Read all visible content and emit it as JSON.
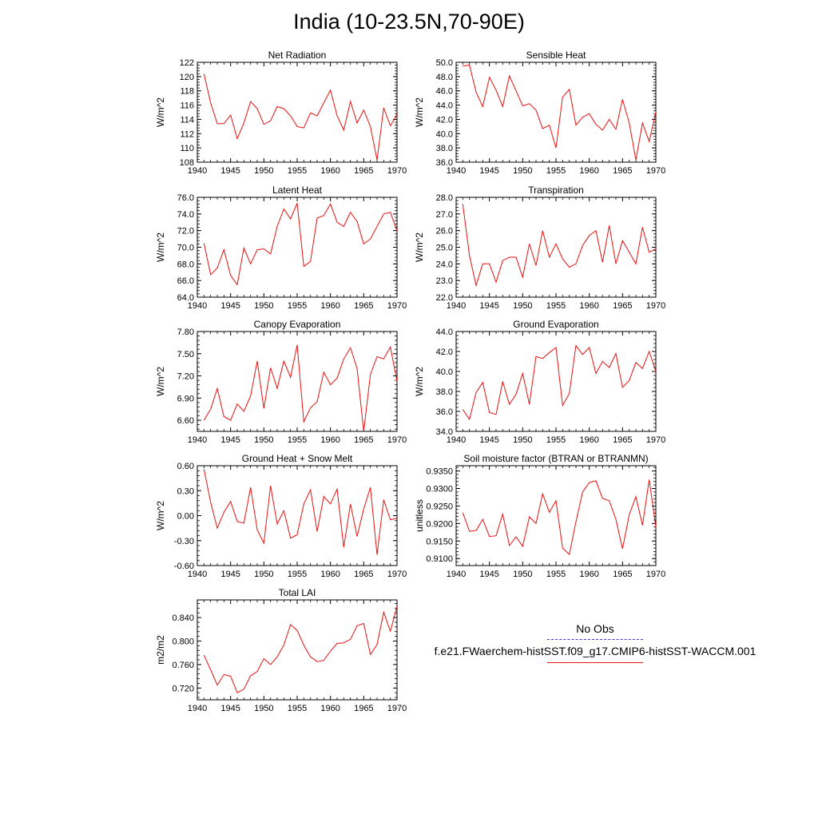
{
  "title": "India (10-23.5N,70-90E)",
  "legend": {
    "obs_label": "No Obs",
    "obs_color": "#3b3bd4",
    "run_label": "f.e21.FWaerchem-histSST.f09_g17.CMIP6-histSST-WACCM.001",
    "run_color": "#e8100f"
  },
  "chart_data": [
    {
      "type": "line",
      "title": "Net Radiation",
      "ylabel": "W/m^2",
      "xlim": [
        1940,
        1970
      ],
      "ylim": [
        108,
        122
      ],
      "xticks": [
        "1940",
        "1945",
        "1950",
        "1955",
        "1960",
        "1965",
        "1970"
      ],
      "yticks": [
        "108",
        "110",
        "112",
        "114",
        "116",
        "118",
        "120",
        "122"
      ],
      "grid": false,
      "x": [
        1941,
        1942,
        1943,
        1944,
        1945,
        1946,
        1947,
        1948,
        1949,
        1950,
        1951,
        1952,
        1953,
        1954,
        1955,
        1956,
        1957,
        1958,
        1959,
        1960,
        1961,
        1962,
        1963,
        1964,
        1965,
        1966,
        1967,
        1968,
        1969,
        1970
      ],
      "series": [
        {
          "values": [
            120.4,
            116.3,
            113.4,
            113.4,
            114.6,
            111.3,
            113.5,
            116.5,
            115.5,
            113.3,
            113.8,
            115.8,
            115.5,
            114.5,
            113.0,
            112.8,
            114.9,
            114.5,
            116.3,
            118.1,
            114.5,
            112.5,
            116.5,
            113.5,
            115.3,
            113.0,
            108.3,
            115.6,
            113.1,
            114.7
          ],
          "color": "#e8100f"
        }
      ]
    },
    {
      "type": "line",
      "title": "Sensible Heat",
      "ylabel": "W/m^2",
      "xlim": [
        1940,
        1970
      ],
      "ylim": [
        36.0,
        50.0
      ],
      "xticks": [
        "1940",
        "1945",
        "1950",
        "1955",
        "1960",
        "1965",
        "1970"
      ],
      "yticks": [
        "36.0",
        "38.0",
        "40.0",
        "42.0",
        "44.0",
        "46.0",
        "48.0",
        "50.0"
      ],
      "grid": false,
      "x": [
        1941,
        1942,
        1943,
        1944,
        1945,
        1946,
        1947,
        1948,
        1949,
        1950,
        1951,
        1952,
        1953,
        1954,
        1955,
        1956,
        1957,
        1958,
        1959,
        1960,
        1961,
        1962,
        1963,
        1964,
        1965,
        1966,
        1967,
        1968,
        1969,
        1970
      ],
      "series": [
        {
          "values": [
            49.5,
            49.6,
            45.8,
            43.8,
            47.9,
            46.1,
            43.8,
            48.1,
            46.0,
            43.9,
            44.2,
            43.3,
            40.7,
            41.2,
            38.0,
            45.1,
            46.2,
            41.2,
            42.3,
            42.8,
            41.3,
            40.5,
            42.0,
            40.6,
            44.8,
            41.5,
            36.3,
            41.5,
            38.9,
            43.0
          ],
          "color": "#e8100f"
        }
      ]
    },
    {
      "type": "line",
      "title": "Latent Heat",
      "ylabel": "W/m^2",
      "xlim": [
        1940,
        1970
      ],
      "ylim": [
        64.0,
        76.0
      ],
      "xticks": [
        "1940",
        "1945",
        "1950",
        "1955",
        "1960",
        "1965",
        "1970"
      ],
      "yticks": [
        "64.0",
        "66.0",
        "68.0",
        "70.0",
        "72.0",
        "74.0",
        "76.0"
      ],
      "grid": false,
      "x": [
        1941,
        1942,
        1943,
        1944,
        1945,
        1946,
        1947,
        1948,
        1949,
        1950,
        1951,
        1952,
        1953,
        1954,
        1955,
        1956,
        1957,
        1958,
        1959,
        1960,
        1961,
        1962,
        1963,
        1964,
        1965,
        1966,
        1967,
        1968,
        1969,
        1970
      ],
      "series": [
        {
          "values": [
            70.5,
            66.7,
            67.5,
            69.7,
            66.6,
            65.5,
            69.9,
            68.0,
            69.7,
            69.8,
            69.2,
            72.5,
            74.6,
            73.4,
            75.3,
            67.7,
            68.3,
            73.5,
            73.8,
            75.2,
            73.0,
            72.5,
            74.2,
            73.1,
            70.4,
            71.0,
            72.5,
            74.0,
            74.2,
            72.0
          ],
          "color": "#e8100f"
        }
      ]
    },
    {
      "type": "line",
      "title": "Transpiration",
      "ylabel": "W/m^2",
      "xlim": [
        1940,
        1970
      ],
      "ylim": [
        22.0,
        28.0
      ],
      "xticks": [
        "1940",
        "1945",
        "1950",
        "1955",
        "1960",
        "1965",
        "1970"
      ],
      "yticks": [
        "22.0",
        "23.0",
        "24.0",
        "25.0",
        "26.0",
        "27.0",
        "28.0"
      ],
      "grid": false,
      "x": [
        1941,
        1942,
        1943,
        1944,
        1945,
        1946,
        1947,
        1948,
        1949,
        1950,
        1951,
        1952,
        1953,
        1954,
        1955,
        1956,
        1957,
        1958,
        1959,
        1960,
        1961,
        1962,
        1963,
        1964,
        1965,
        1966,
        1967,
        1968,
        1969,
        1970
      ],
      "series": [
        {
          "values": [
            27.6,
            24.5,
            22.7,
            24.0,
            24.0,
            22.9,
            24.2,
            24.4,
            24.4,
            23.2,
            25.2,
            23.9,
            26.0,
            24.4,
            25.2,
            24.3,
            23.8,
            24.0,
            25.1,
            25.7,
            26.0,
            24.1,
            26.3,
            24.0,
            25.4,
            24.7,
            24.0,
            26.2,
            24.7,
            24.9
          ],
          "color": "#e8100f"
        }
      ]
    },
    {
      "type": "line",
      "title": "Canopy Evaporation",
      "ylabel": "W/m^2",
      "xlim": [
        1940,
        1970
      ],
      "ylim": [
        6.45,
        7.8
      ],
      "xticks": [
        "1940",
        "1945",
        "1950",
        "1955",
        "1960",
        "1965",
        "1970"
      ],
      "yticks": [
        "6.60",
        "6.90",
        "7.20",
        "7.50",
        "7.80"
      ],
      "grid": false,
      "x": [
        1941,
        1942,
        1943,
        1944,
        1945,
        1946,
        1947,
        1948,
        1949,
        1950,
        1951,
        1952,
        1953,
        1954,
        1955,
        1956,
        1957,
        1958,
        1959,
        1960,
        1961,
        1962,
        1963,
        1964,
        1965,
        1966,
        1967,
        1968,
        1969,
        1970
      ],
      "series": [
        {
          "values": [
            6.6,
            6.75,
            7.03,
            6.65,
            6.6,
            6.82,
            6.72,
            6.93,
            7.4,
            6.76,
            7.31,
            7.03,
            7.4,
            7.18,
            7.62,
            6.58,
            6.77,
            6.85,
            7.25,
            7.08,
            7.17,
            7.43,
            7.58,
            7.3,
            6.45,
            7.22,
            7.46,
            7.43,
            7.59,
            7.13
          ],
          "color": "#e8100f"
        }
      ]
    },
    {
      "type": "line",
      "title": "Ground Evaporation",
      "ylabel": "W/m^2",
      "xlim": [
        1940,
        1970
      ],
      "ylim": [
        34.0,
        44.0
      ],
      "xticks": [
        "1940",
        "1945",
        "1950",
        "1955",
        "1960",
        "1965",
        "1970"
      ],
      "yticks": [
        "34.0",
        "36.0",
        "38.0",
        "40.0",
        "42.0",
        "44.0"
      ],
      "grid": false,
      "x": [
        1941,
        1942,
        1943,
        1944,
        1945,
        1946,
        1947,
        1948,
        1949,
        1950,
        1951,
        1952,
        1953,
        1954,
        1955,
        1956,
        1957,
        1958,
        1959,
        1960,
        1961,
        1962,
        1963,
        1964,
        1965,
        1966,
        1967,
        1968,
        1969,
        1970
      ],
      "series": [
        {
          "values": [
            36.2,
            35.2,
            37.9,
            38.9,
            35.9,
            35.7,
            39.0,
            36.7,
            37.7,
            39.8,
            36.7,
            41.5,
            41.3,
            41.9,
            42.4,
            36.6,
            37.8,
            42.6,
            41.7,
            42.4,
            39.8,
            41.0,
            40.4,
            41.8,
            38.4,
            39.1,
            40.9,
            40.3,
            42.0,
            40.0
          ],
          "color": "#e8100f"
        }
      ]
    },
    {
      "type": "line",
      "title": "Ground Heat + Snow Melt",
      "ylabel": "W/m^2",
      "xlim": [
        1940,
        1970
      ],
      "ylim": [
        -0.6,
        0.6
      ],
      "xticks": [
        "1940",
        "1945",
        "1950",
        "1955",
        "1960",
        "1965",
        "1970"
      ],
      "yticks": [
        "-0.60",
        "-0.30",
        "0.00",
        "0.30",
        "0.60"
      ],
      "grid": false,
      "x": [
        1941,
        1942,
        1943,
        1944,
        1945,
        1946,
        1947,
        1948,
        1949,
        1950,
        1951,
        1952,
        1953,
        1954,
        1955,
        1956,
        1957,
        1958,
        1959,
        1960,
        1961,
        1962,
        1963,
        1964,
        1965,
        1966,
        1967,
        1968,
        1969,
        1970
      ],
      "series": [
        {
          "values": [
            0.56,
            0.16,
            -0.15,
            0.04,
            0.17,
            -0.07,
            -0.09,
            0.34,
            -0.17,
            -0.33,
            0.36,
            -0.1,
            0.06,
            -0.27,
            -0.23,
            0.14,
            0.31,
            -0.19,
            0.23,
            0.14,
            0.32,
            -0.38,
            0.14,
            -0.25,
            0.08,
            0.34,
            -0.47,
            0.19,
            -0.05,
            -0.03
          ],
          "color": "#e8100f"
        }
      ]
    },
    {
      "type": "line",
      "title": "Soil moisture factor (BTRAN or BTRANMN)",
      "ylabel": "unitless",
      "xlim": [
        1940,
        1970
      ],
      "ylim": [
        0.908,
        0.9365
      ],
      "xticks": [
        "1940",
        "1945",
        "1950",
        "1955",
        "1960",
        "1965",
        "1970"
      ],
      "yticks": [
        "0.9100",
        "0.9150",
        "0.9200",
        "0.9250",
        "0.9300",
        "0.9350"
      ],
      "grid": false,
      "x": [
        1941,
        1942,
        1943,
        1944,
        1945,
        1946,
        1947,
        1948,
        1949,
        1950,
        1951,
        1952,
        1953,
        1954,
        1955,
        1956,
        1957,
        1958,
        1959,
        1960,
        1961,
        1962,
        1963,
        1964,
        1965,
        1966,
        1967,
        1968,
        1969,
        1970
      ],
      "series": [
        {
          "values": [
            0.9231,
            0.9178,
            0.918,
            0.9212,
            0.9163,
            0.9165,
            0.9227,
            0.9137,
            0.9162,
            0.9135,
            0.9219,
            0.92,
            0.9285,
            0.9232,
            0.9265,
            0.913,
            0.9112,
            0.9205,
            0.929,
            0.9317,
            0.9322,
            0.9272,
            0.9265,
            0.9212,
            0.9128,
            0.9225,
            0.9277,
            0.9195,
            0.9325,
            0.919
          ],
          "color": "#e8100f"
        }
      ]
    },
    {
      "type": "line",
      "title": "Total LAI",
      "ylabel": "m2/m2",
      "xlim": [
        1940,
        1970
      ],
      "ylim": [
        0.7,
        0.87
      ],
      "xticks": [
        "1940",
        "1945",
        "1950",
        "1955",
        "1960",
        "1965",
        "1970"
      ],
      "yticks": [
        "0.720",
        "0.760",
        "0.800",
        "0.840"
      ],
      "grid": false,
      "x": [
        1941,
        1942,
        1943,
        1944,
        1945,
        1946,
        1947,
        1948,
        1949,
        1950,
        1951,
        1952,
        1953,
        1954,
        1955,
        1956,
        1957,
        1958,
        1959,
        1960,
        1961,
        1962,
        1963,
        1964,
        1965,
        1966,
        1967,
        1968,
        1969,
        1970
      ],
      "series": [
        {
          "values": [
            0.776,
            0.751,
            0.725,
            0.743,
            0.74,
            0.712,
            0.718,
            0.741,
            0.748,
            0.77,
            0.76,
            0.773,
            0.793,
            0.828,
            0.818,
            0.793,
            0.773,
            0.765,
            0.767,
            0.783,
            0.796,
            0.797,
            0.803,
            0.826,
            0.83,
            0.777,
            0.794,
            0.849,
            0.817,
            0.859
          ],
          "color": "#e8100f"
        }
      ]
    }
  ]
}
